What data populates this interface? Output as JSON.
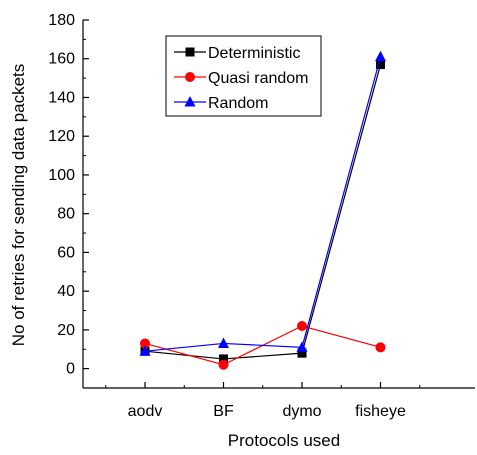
{
  "chart_data": {
    "type": "line",
    "categories": [
      "aodv",
      "BF",
      "dymo",
      "fisheye"
    ],
    "series": [
      {
        "name": "Deterministic",
        "values": [
          9,
          5,
          8,
          157
        ],
        "color": "#000000",
        "marker": "square"
      },
      {
        "name": "Quasi random",
        "values": [
          13,
          2,
          22,
          11
        ],
        "color": "#ff0000",
        "marker": "circle"
      },
      {
        "name": "Random",
        "values": [
          9,
          13,
          11,
          161
        ],
        "color": "#0000ff",
        "marker": "triangle"
      }
    ],
    "title": "",
    "xlabel": "Protocols used",
    "ylabel": "No of retries for sending data packets",
    "ylim": [
      -10,
      180
    ],
    "yticks": [
      "0",
      "20",
      "40",
      "60",
      "80",
      "100",
      "120",
      "140",
      "160",
      "180"
    ],
    "grid": false,
    "legend_position": "top-center"
  }
}
